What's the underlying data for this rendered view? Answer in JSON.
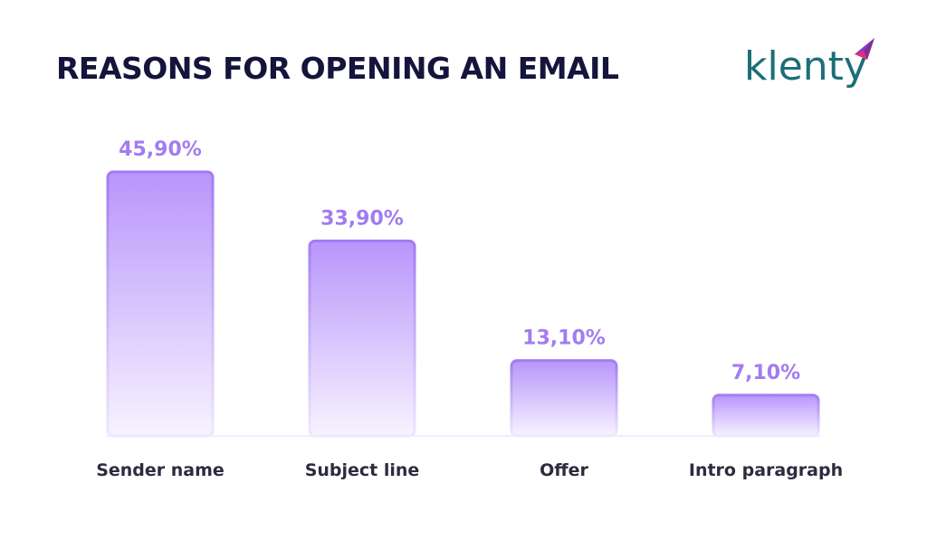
{
  "brand": {
    "logo_text": "klenty"
  },
  "chart_data": {
    "type": "bar",
    "title": "REASONS FOR OPENING AN EMAIL",
    "categories": [
      "Sender name",
      "Subject line",
      "Offer",
      "Intro paragraph"
    ],
    "values": [
      45.9,
      33.9,
      13.1,
      7.1
    ],
    "value_labels": [
      "45,90%",
      "33,90%",
      "13,10%",
      "7,10%"
    ],
    "ylim": [
      0,
      50
    ],
    "grid": false,
    "legend": "none",
    "colors": {
      "bar_top": "#b895fb",
      "bar_border": "#a17cf2",
      "bar_bottom": "#f7f3ff",
      "value_text": "#a27cf0",
      "title": "#14143c"
    }
  }
}
